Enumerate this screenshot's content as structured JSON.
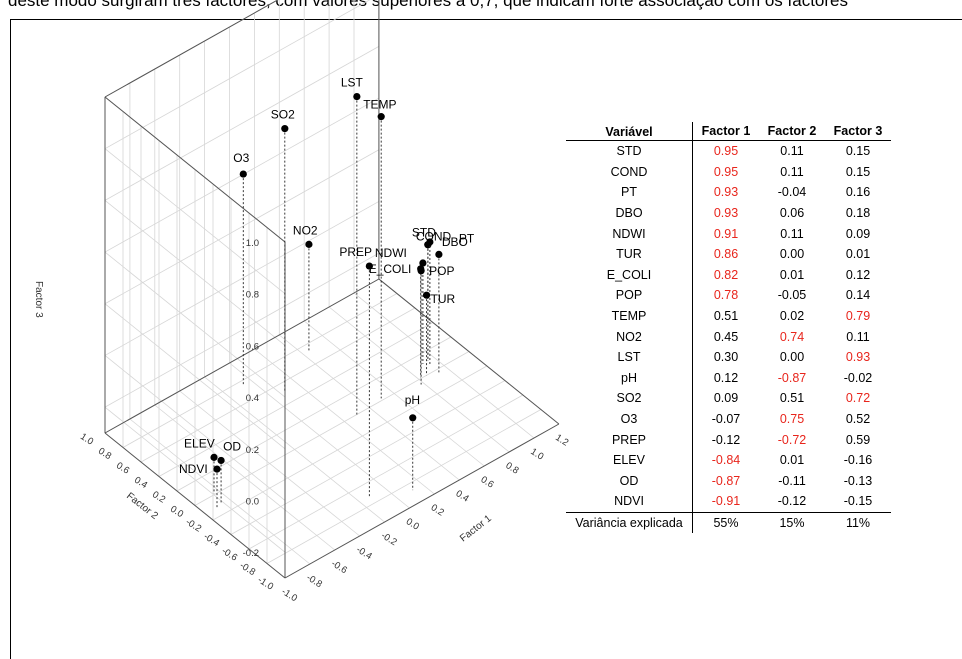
{
  "page": {
    "header_text": "deste modo surgiram três factores, com valores superiores a 0,7, que indicam forte associação com os factores"
  },
  "chart_data": {
    "type": "scatter3d",
    "xlabel": "Factor 1",
    "ylabel": "Factor 2",
    "zlabel": "Factor 3",
    "x_ticks": [
      "-1.0",
      "-0.8",
      "-0.6",
      "-0.4",
      "-0.2",
      "0.0",
      "0.2",
      "0.4",
      "0.6",
      "0.8",
      "1.0",
      "1.2"
    ],
    "y_ticks": [
      "-1.0",
      "-0.8",
      "-0.6",
      "-0.4",
      "-0.2",
      "0.0",
      "0.2",
      "0.4",
      "0.6",
      "0.8",
      "1.0"
    ],
    "z_ticks": [
      "-0.2",
      "0.0",
      "0.2",
      "0.4",
      "0.6",
      "0.8",
      "1.0"
    ],
    "xlim": [
      -1.0,
      1.2
    ],
    "ylim": [
      -1.0,
      1.0
    ],
    "zlim": [
      -0.3,
      1.0
    ],
    "grid": true,
    "points": [
      {
        "label": "STD",
        "x": 0.95,
        "y": 0.11,
        "z": 0.15
      },
      {
        "label": "COND",
        "x": 0.95,
        "y": 0.11,
        "z": 0.15
      },
      {
        "label": "PT",
        "x": 0.93,
        "y": -0.04,
        "z": 0.16
      },
      {
        "label": "DBO",
        "x": 0.93,
        "y": 0.06,
        "z": 0.18
      },
      {
        "label": "NDWI",
        "x": 0.91,
        "y": 0.11,
        "z": 0.09
      },
      {
        "label": "TUR",
        "x": 0.86,
        "y": 0.0,
        "z": 0.01
      },
      {
        "label": "E_COLI",
        "x": 0.82,
        "y": 0.01,
        "z": 0.12
      },
      {
        "label": "POP",
        "x": 0.78,
        "y": -0.05,
        "z": 0.14
      },
      {
        "label": "TEMP",
        "x": 0.51,
        "y": 0.02,
        "z": 0.79
      },
      {
        "label": "NO2",
        "x": 0.45,
        "y": 0.74,
        "z": 0.11
      },
      {
        "label": "LST",
        "x": 0.3,
        "y": 0.0,
        "z": 0.93
      },
      {
        "label": "pH",
        "x": 0.12,
        "y": -0.87,
        "z": -0.02
      },
      {
        "label": "SO2",
        "x": 0.09,
        "y": 0.51,
        "z": 0.72
      },
      {
        "label": "O3",
        "x": -0.07,
        "y": 0.75,
        "z": 0.52
      },
      {
        "label": "PREP",
        "x": -0.12,
        "y": -0.72,
        "z": 0.59
      },
      {
        "label": "ELEV",
        "x": -0.84,
        "y": 0.01,
        "z": -0.16
      },
      {
        "label": "OD",
        "x": -0.87,
        "y": -0.11,
        "z": -0.13
      },
      {
        "label": "NDVI",
        "x": -0.91,
        "y": -0.12,
        "z": -0.15
      }
    ]
  },
  "table": {
    "headers": [
      "Variável",
      "Factor 1",
      "Factor 2",
      "Factor 3"
    ],
    "highlight_color": "#e8251c",
    "rows": [
      {
        "name": "STD",
        "f1": "0.95",
        "f2": "0.11",
        "f3": "0.15",
        "hi": [
          true,
          false,
          false
        ]
      },
      {
        "name": "COND",
        "f1": "0.95",
        "f2": "0.11",
        "f3": "0.15",
        "hi": [
          true,
          false,
          false
        ]
      },
      {
        "name": "PT",
        "f1": "0.93",
        "f2": "-0.04",
        "f3": "0.16",
        "hi": [
          true,
          false,
          false
        ]
      },
      {
        "name": "DBO",
        "f1": "0.93",
        "f2": "0.06",
        "f3": "0.18",
        "hi": [
          true,
          false,
          false
        ]
      },
      {
        "name": "NDWI",
        "f1": "0.91",
        "f2": "0.11",
        "f3": "0.09",
        "hi": [
          true,
          false,
          false
        ]
      },
      {
        "name": "TUR",
        "f1": "0.86",
        "f2": "0.00",
        "f3": "0.01",
        "hi": [
          true,
          false,
          false
        ]
      },
      {
        "name": "E_COLI",
        "f1": "0.82",
        "f2": "0.01",
        "f3": "0.12",
        "hi": [
          true,
          false,
          false
        ]
      },
      {
        "name": "POP",
        "f1": "0.78",
        "f2": "-0.05",
        "f3": "0.14",
        "hi": [
          true,
          false,
          false
        ]
      },
      {
        "name": "TEMP",
        "f1": "0.51",
        "f2": "0.02",
        "f3": "0.79",
        "hi": [
          false,
          false,
          true
        ]
      },
      {
        "name": "NO2",
        "f1": "0.45",
        "f2": "0.74",
        "f3": "0.11",
        "hi": [
          false,
          true,
          false
        ]
      },
      {
        "name": "LST",
        "f1": "0.30",
        "f2": "0.00",
        "f3": "0.93",
        "hi": [
          false,
          false,
          true
        ]
      },
      {
        "name": "pH",
        "f1": "0.12",
        "f2": "-0.87",
        "f3": "-0.02",
        "hi": [
          false,
          true,
          false
        ]
      },
      {
        "name": "SO2",
        "f1": "0.09",
        "f2": "0.51",
        "f3": "0.72",
        "hi": [
          false,
          false,
          true
        ]
      },
      {
        "name": "O3",
        "f1": "-0.07",
        "f2": "0.75",
        "f3": "0.52",
        "hi": [
          false,
          true,
          false
        ]
      },
      {
        "name": "PREP",
        "f1": "-0.12",
        "f2": "-0.72",
        "f3": "0.59",
        "hi": [
          false,
          true,
          false
        ]
      },
      {
        "name": "ELEV",
        "f1": "-0.84",
        "f2": "0.01",
        "f3": "-0.16",
        "hi": [
          true,
          false,
          false
        ]
      },
      {
        "name": "OD",
        "f1": "-0.87",
        "f2": "-0.11",
        "f3": "-0.13",
        "hi": [
          true,
          false,
          false
        ]
      },
      {
        "name": "NDVI",
        "f1": "-0.91",
        "f2": "-0.12",
        "f3": "-0.15",
        "hi": [
          true,
          false,
          false
        ]
      }
    ],
    "summary": {
      "label": "Variância explicada",
      "f1": "55%",
      "f2": "15%",
      "f3": "11%"
    }
  }
}
